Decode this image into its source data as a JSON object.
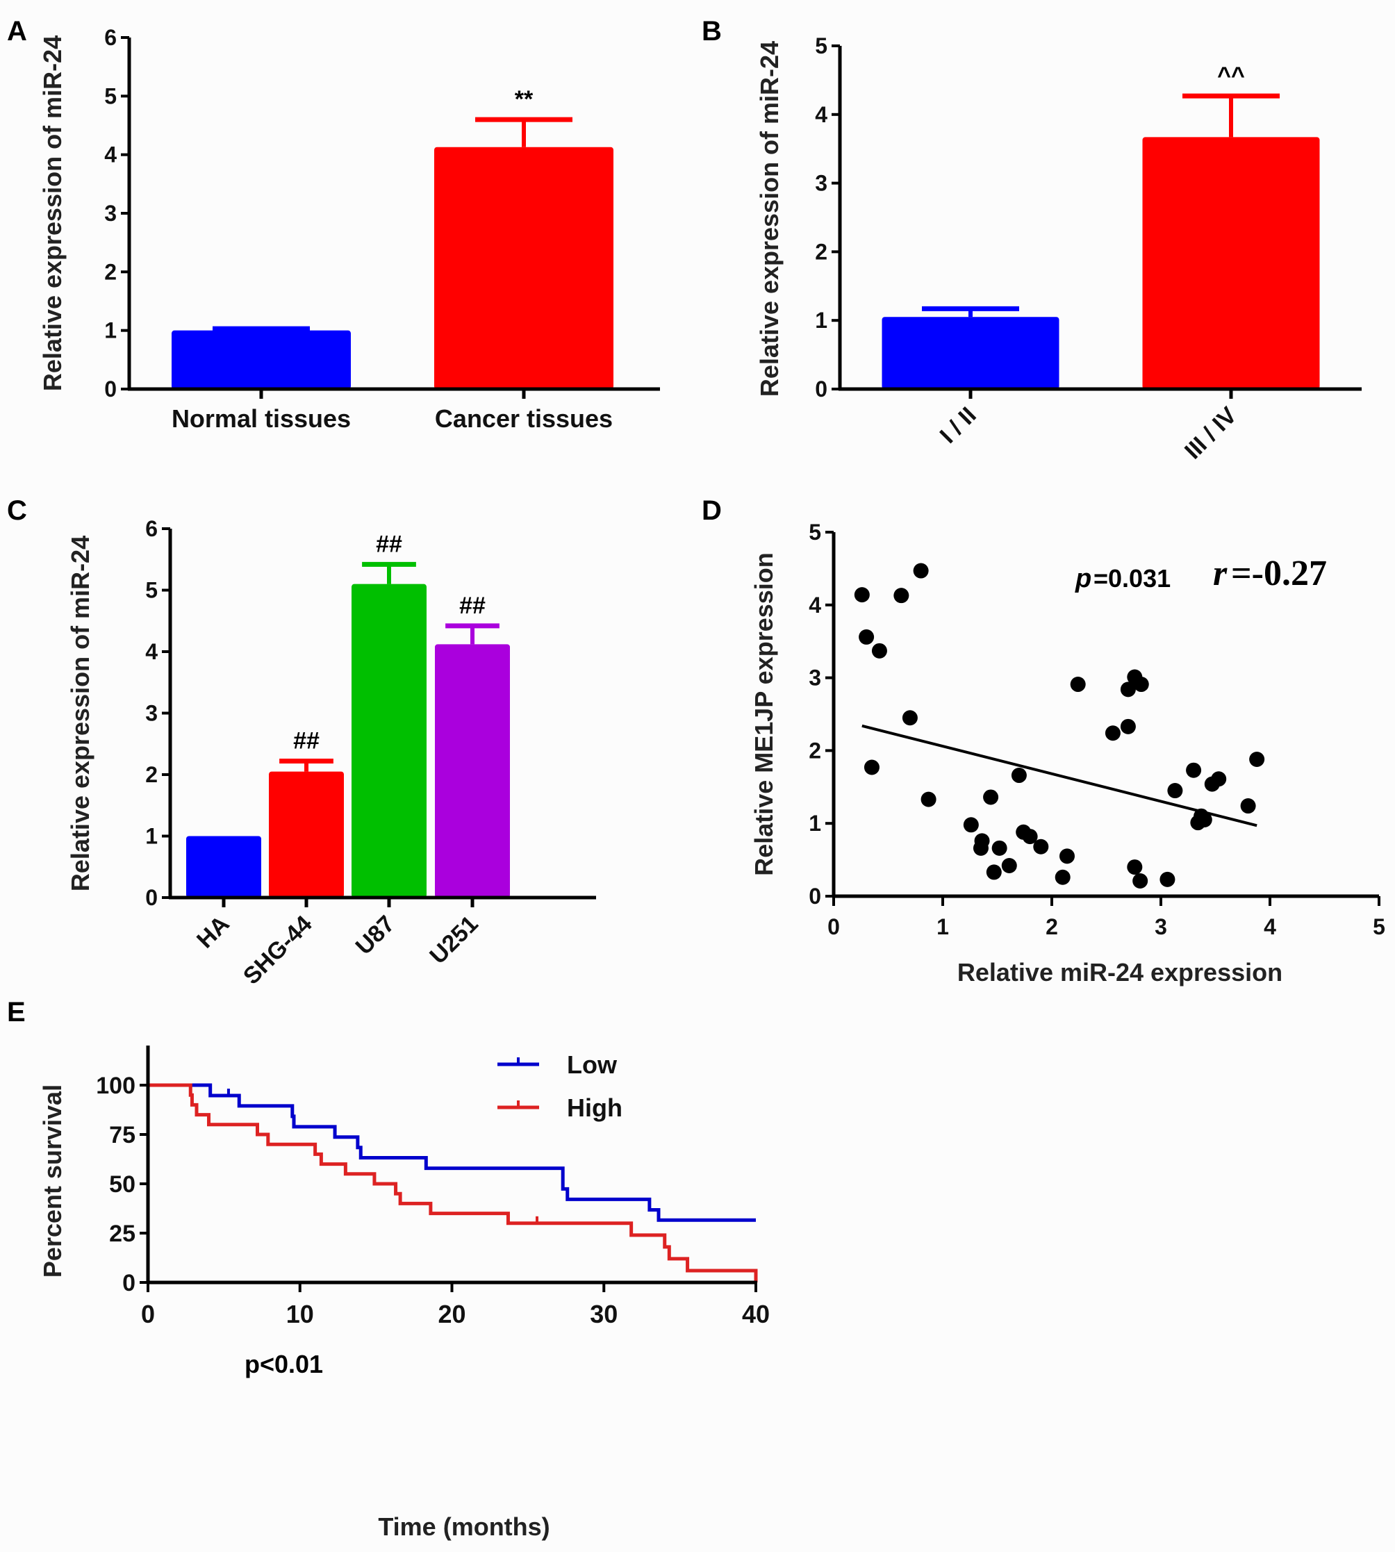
{
  "chart_data": [
    {
      "panel": "A",
      "type": "bar",
      "title": "",
      "xlabel": "",
      "ylabel": "Relative expression of miR-24",
      "ylim": [
        0,
        6
      ],
      "yticks": [
        "0",
        "1",
        "2",
        "3",
        "4",
        "5",
        "6"
      ],
      "categories": [
        "Normal tissues",
        "Cancer tissues"
      ],
      "values": [
        1.0,
        4.13
      ],
      "error_upper": [
        1.03,
        4.6
      ],
      "colors": [
        "#0000ff",
        "#ff0000"
      ],
      "annotations": [
        "",
        "**"
      ],
      "grid": false
    },
    {
      "panel": "B",
      "type": "bar",
      "title": "",
      "xlabel": "",
      "ylabel": "Relative expression of miR-24",
      "ylim": [
        0,
        5
      ],
      "yticks": [
        "0",
        "1",
        "2",
        "3",
        "4",
        "5"
      ],
      "categories": [
        "I / II",
        "III / IV"
      ],
      "values": [
        1.05,
        3.67
      ],
      "error_upper": [
        1.17,
        4.27
      ],
      "colors": [
        "#0000ff",
        "#ff0000"
      ],
      "annotations": [
        "",
        "^^"
      ],
      "grid": false
    },
    {
      "panel": "C",
      "type": "bar",
      "title": "",
      "xlabel": "",
      "ylabel": "Relative expression of miR-24",
      "ylim": [
        0,
        6
      ],
      "yticks": [
        "0",
        "1",
        "2",
        "3",
        "4",
        "5",
        "6"
      ],
      "categories": [
        "HA",
        "SHG-44",
        "U87",
        "U251"
      ],
      "values": [
        1.0,
        2.05,
        5.1,
        4.12
      ],
      "error_upper": [
        1.0,
        2.22,
        5.42,
        4.42
      ],
      "colors": [
        "#0000ff",
        "#ff0000",
        "#00bf00",
        "#aa00dd"
      ],
      "annotations": [
        "",
        "##",
        "##",
        "##"
      ],
      "grid": false
    },
    {
      "panel": "D",
      "type": "scatter",
      "title": "",
      "xlabel": "Relative miR-24 expression",
      "ylabel": "Relative ME1JP expression",
      "xlim": [
        0,
        5
      ],
      "ylim": [
        0,
        5
      ],
      "xticks": [
        "0",
        "1",
        "2",
        "3",
        "4",
        "5"
      ],
      "yticks": [
        "0",
        "1",
        "2",
        "3",
        "4",
        "5"
      ],
      "points": [
        [
          0.26,
          4.14
        ],
        [
          0.3,
          3.56
        ],
        [
          0.42,
          3.37
        ],
        [
          0.62,
          4.13
        ],
        [
          0.8,
          4.47
        ],
        [
          0.35,
          1.77
        ],
        [
          0.7,
          2.45
        ],
        [
          0.87,
          1.33
        ],
        [
          1.26,
          0.98
        ],
        [
          1.36,
          0.76
        ],
        [
          1.35,
          0.66
        ],
        [
          1.44,
          1.36
        ],
        [
          1.52,
          0.66
        ],
        [
          1.47,
          0.33
        ],
        [
          1.61,
          0.42
        ],
        [
          1.7,
          1.66
        ],
        [
          1.74,
          0.88
        ],
        [
          1.8,
          0.82
        ],
        [
          1.9,
          0.68
        ],
        [
          2.1,
          0.26
        ],
        [
          2.14,
          0.55
        ],
        [
          2.24,
          2.91
        ],
        [
          2.56,
          2.24
        ],
        [
          2.7,
          2.33
        ],
        [
          2.7,
          2.84
        ],
        [
          2.76,
          3.01
        ],
        [
          2.82,
          2.91
        ],
        [
          2.76,
          0.4
        ],
        [
          2.81,
          0.21
        ],
        [
          3.06,
          0.23
        ],
        [
          3.13,
          1.45
        ],
        [
          3.3,
          1.73
        ],
        [
          3.34,
          1.01
        ],
        [
          3.37,
          1.1
        ],
        [
          3.4,
          1.05
        ],
        [
          3.47,
          1.54
        ],
        [
          3.53,
          1.61
        ],
        [
          3.8,
          1.24
        ],
        [
          3.88,
          1.88
        ]
      ],
      "trendline": {
        "x": [
          0.26,
          3.88
        ],
        "y": [
          2.34,
          0.97
        ]
      },
      "annotations": {
        "p_label": "p",
        "p_value": "=0.031",
        "r_label": "r",
        "r_value": "=-0.27"
      },
      "grid": false
    },
    {
      "panel": "E",
      "type": "line",
      "subtype": "kaplan-meier",
      "title": "",
      "xlabel": "Time (months)",
      "ylabel": "Percent survival",
      "xlim": [
        0,
        40
      ],
      "ylim": [
        0,
        100
      ],
      "xticks": [
        "0",
        "10",
        "20",
        "30",
        "40"
      ],
      "yticks": [
        "0",
        "25",
        "50",
        "75",
        "100"
      ],
      "legend_position": "top-right",
      "annotation": "p<0.01",
      "series": [
        {
          "name": "Low",
          "color": "#0000cc",
          "steps": [
            [
              0,
              100
            ],
            [
              4.1,
              94.7
            ],
            [
              6.0,
              89.5
            ],
            [
              9.5,
              84.2
            ],
            [
              9.6,
              78.9
            ],
            [
              12.3,
              73.7
            ],
            [
              13.8,
              68.4
            ],
            [
              14.0,
              63.2
            ],
            [
              18.3,
              57.9
            ],
            [
              27.3,
              47.4
            ],
            [
              27.6,
              42.1
            ],
            [
              33.0,
              36.8
            ],
            [
              33.6,
              31.6
            ],
            [
              40,
              31.6
            ]
          ],
          "censor_times": [
            5.3
          ]
        },
        {
          "name": "High",
          "color": "#dd2222",
          "steps": [
            [
              0,
              100
            ],
            [
              2.8,
              95
            ],
            [
              2.9,
              90
            ],
            [
              3.2,
              85
            ],
            [
              4.0,
              80
            ],
            [
              7.2,
              75
            ],
            [
              7.9,
              70
            ],
            [
              11.0,
              65
            ],
            [
              11.4,
              60
            ],
            [
              13.0,
              55
            ],
            [
              14.9,
              50
            ],
            [
              16.3,
              45
            ],
            [
              16.6,
              40
            ],
            [
              18.6,
              35
            ],
            [
              23.7,
              30
            ],
            [
              31.8,
              24
            ],
            [
              34.0,
              18
            ],
            [
              34.3,
              12
            ],
            [
              35.5,
              6
            ],
            [
              40,
              6
            ],
            [
              40,
              0
            ]
          ],
          "censor_times": [
            25.6
          ]
        }
      ],
      "grid": false
    }
  ],
  "labels": {
    "A": "A",
    "B": "B",
    "C": "C",
    "D": "D",
    "E": "E"
  }
}
